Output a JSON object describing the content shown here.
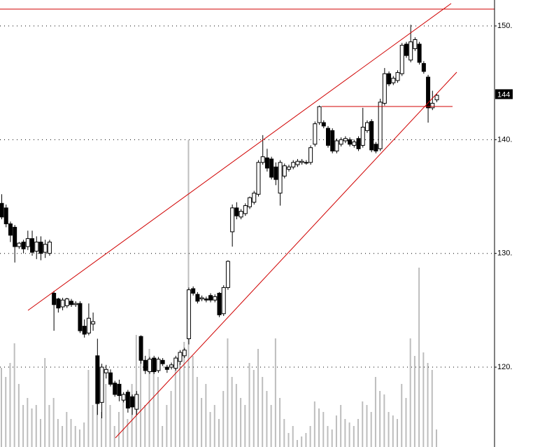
{
  "chart_data": {
    "type": "candlestick",
    "open": [
      134.4,
      134.0,
      132.6,
      132.3,
      130.6,
      131.0,
      130.6,
      131.3,
      130.2,
      131.0,
      130.1,
      130.0,
      126.5,
      126.0,
      125.3,
      125.4,
      125.8,
      125.5,
      125.6,
      123.6,
      123.0,
      123.8,
      121.0,
      116.9,
      119.5,
      119.5,
      118.6,
      118.5,
      117.1,
      117.8,
      117.4,
      116.3,
      122.7,
      120.6,
      119.6,
      120.8,
      119.7,
      120.6,
      120.0,
      120.0,
      119.9,
      120.5,
      121.0,
      122.5,
      126.9,
      126.4,
      126.0,
      126.0,
      126.3,
      125.9,
      126.5,
      124.7,
      127.0,
      131.9,
      134.0,
      133.2,
      133.5,
      134.1,
      134.5,
      135.2,
      138.0,
      138.4,
      138.3,
      137.6,
      135.3,
      136.8,
      137.4,
      137.6,
      137.8,
      138.0,
      138.0,
      138.0,
      139.6,
      141.5,
      141.5,
      141.0,
      140.8,
      139.0,
      139.6,
      139.9,
      140.0,
      139.5,
      140.1,
      139.5,
      140.8,
      141.6,
      139.6,
      139.2,
      143.2,
      145.8,
      145.0,
      145.2,
      145.8,
      148.4,
      147.0,
      148.0,
      148.4,
      146.7,
      145.5,
      142.8,
      143.5
    ],
    "high": [
      135.2,
      134.3,
      132.8,
      132.5,
      131.0,
      131.2,
      132.0,
      132.0,
      131.5,
      131.5,
      131.2,
      131.2,
      126.7,
      126.1,
      126.1,
      126.1,
      126.0,
      125.8,
      125.8,
      124.2,
      125.6,
      124.8,
      122.5,
      120.3,
      120.2,
      119.8,
      118.8,
      118.9,
      117.8,
      118.0,
      117.6,
      117.9,
      122.8,
      121.0,
      120.9,
      121.0,
      120.9,
      120.8,
      120.2,
      120.4,
      121.0,
      121.5,
      121.7,
      127.0,
      127.1,
      126.6,
      126.3,
      126.2,
      126.5,
      126.4,
      126.6,
      127.2,
      129.4,
      134.3,
      134.5,
      133.9,
      134.4,
      135.0,
      135.5,
      138.2,
      140.4,
      139.2,
      138.5,
      138.0,
      138.2,
      137.9,
      137.8,
      138.2,
      138.3,
      138.3,
      138.2,
      139.5,
      141.6,
      143.0,
      141.7,
      141.2,
      141.0,
      140.1,
      140.2,
      140.3,
      140.2,
      140.0,
      140.3,
      142.8,
      141.7,
      141.8,
      139.8,
      143.6,
      146.3,
      146.0,
      145.6,
      146.1,
      148.5,
      148.6,
      150.1,
      149.0,
      148.6,
      146.9,
      145.7,
      144.3,
      144.0
    ],
    "low": [
      133.0,
      132.3,
      131.0,
      129.2,
      130.4,
      130.0,
      130.3,
      129.8,
      129.5,
      129.4,
      129.6,
      129.8,
      123.2,
      124.8,
      125.0,
      125.2,
      125.3,
      125.3,
      123.0,
      122.6,
      122.8,
      123.2,
      115.8,
      115.5,
      119.0,
      118.3,
      117.4,
      117.0,
      116.9,
      116.0,
      115.8,
      115.8,
      120.3,
      119.4,
      119.4,
      119.4,
      119.5,
      120.1,
      119.5,
      119.8,
      119.7,
      120.2,
      120.8,
      122.0,
      126.3,
      125.6,
      125.8,
      125.7,
      125.7,
      125.7,
      124.4,
      124.5,
      126.8,
      130.6,
      133.0,
      133.0,
      133.3,
      133.9,
      134.3,
      135.0,
      137.8,
      137.2,
      136.5,
      136.0,
      134.2,
      136.6,
      137.2,
      137.4,
      137.6,
      137.8,
      137.8,
      137.8,
      139.4,
      141.3,
      141.0,
      139.3,
      138.8,
      138.8,
      139.4,
      139.7,
      139.4,
      139.3,
      139.0,
      139.3,
      140.6,
      138.9,
      138.8,
      139.0,
      143.0,
      144.7,
      144.8,
      145.0,
      145.6,
      147.2,
      146.8,
      147.8,
      146.6,
      145.8,
      141.5,
      142.6,
      143.3
    ],
    "close": [
      133.2,
      132.6,
      131.6,
      130.6,
      130.9,
      130.4,
      131.3,
      130.1,
      131.0,
      130.0,
      130.8,
      131.0,
      125.5,
      125.2,
      125.9,
      126.0,
      125.5,
      125.6,
      123.2,
      122.9,
      124.3,
      124.0,
      116.8,
      120.0,
      119.8,
      118.5,
      117.6,
      117.5,
      117.6,
      116.4,
      116.5,
      117.6,
      120.6,
      119.7,
      120.7,
      119.6,
      120.7,
      120.3,
      119.8,
      120.2,
      120.8,
      121.3,
      121.5,
      126.8,
      126.5,
      125.8,
      126.1,
      125.9,
      125.9,
      126.2,
      124.6,
      127.0,
      129.3,
      134.0,
      133.3,
      133.7,
      134.2,
      134.9,
      135.3,
      138.0,
      138.5,
      137.5,
      136.7,
      136.5,
      138.0,
      137.7,
      137.6,
      138.0,
      138.1,
      138.1,
      138.0,
      139.3,
      141.4,
      142.9,
      141.2,
      139.5,
      139.0,
      139.9,
      140.0,
      140.1,
      139.6,
      139.8,
      139.2,
      141.1,
      141.5,
      139.1,
      139.0,
      143.3,
      145.8,
      144.9,
      145.4,
      145.9,
      148.3,
      147.4,
      148.6,
      148.8,
      146.8,
      146.0,
      142.8,
      143.2,
      143.9
    ],
    "volume": [
      113,
      100,
      120,
      148,
      90,
      60,
      70,
      55,
      60,
      40,
      127,
      60,
      70,
      40,
      30,
      50,
      40,
      30,
      25,
      35,
      110,
      60,
      100,
      50,
      90,
      60,
      30,
      50,
      70,
      40,
      90,
      160,
      150,
      60,
      140,
      120,
      100,
      30,
      60,
      80,
      120,
      120,
      150,
      438,
      130,
      100,
      70,
      90,
      50,
      60,
      40,
      80,
      155,
      100,
      90,
      70,
      60,
      120,
      110,
      140,
      100,
      80,
      60,
      155,
      70,
      40,
      20,
      30,
      10,
      15,
      20,
      30,
      65,
      55,
      50,
      30,
      25,
      45,
      60,
      40,
      35,
      30,
      40,
      65,
      60,
      50,
      100,
      80,
      75,
      50,
      45,
      40,
      90,
      70,
      155,
      130,
      256,
      135,
      120,
      110,
      25
    ],
    "volume_lim": [
      0,
      638
    ],
    "ylim": [
      112.98,
      152.28
    ],
    "yticks": [
      {
        "value": 120,
        "label": "120."
      },
      {
        "value": 130,
        "label": "130."
      },
      {
        "value": 140,
        "label": "140."
      },
      {
        "value": 150,
        "label": "150."
      }
    ],
    "grid": true,
    "last_price": 144,
    "up_color": "#ffffff",
    "down_color": "#000000",
    "volume_color": "#bdbdbd"
  }
}
